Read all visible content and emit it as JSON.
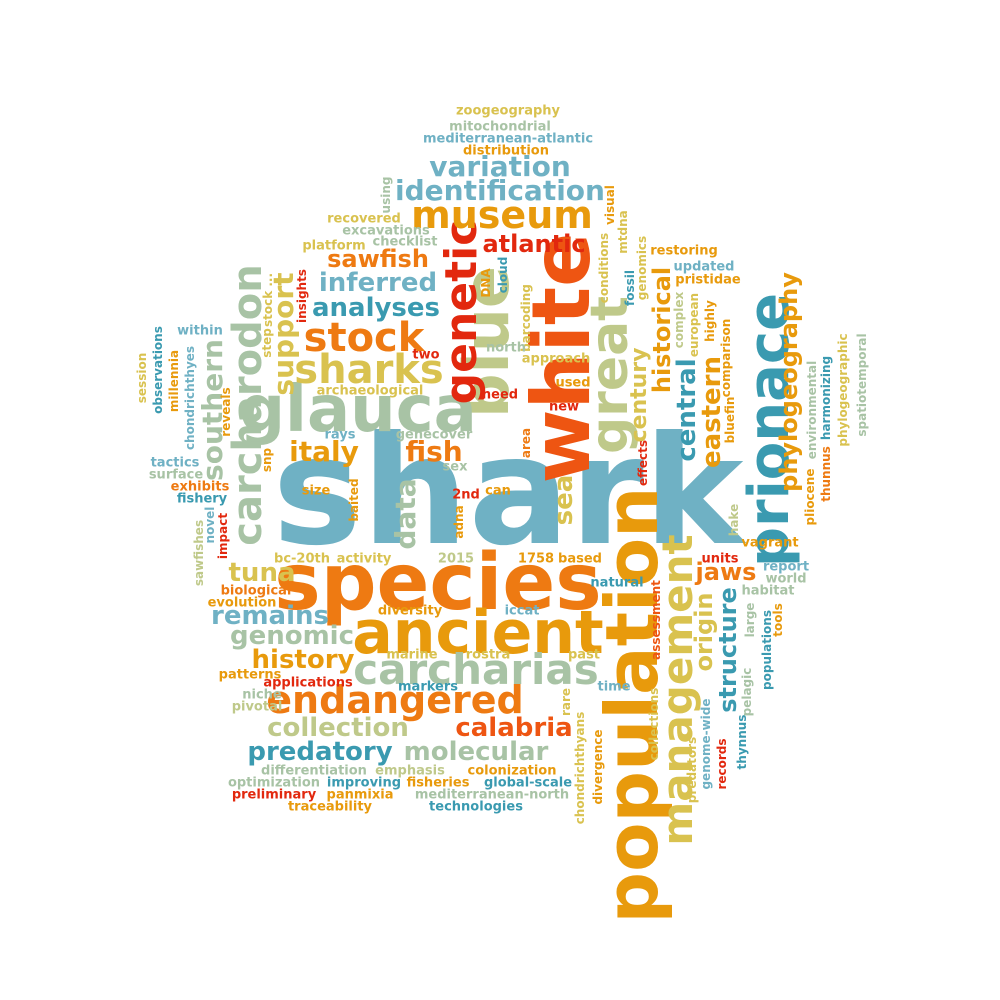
{
  "palette": {
    "teal": "#6FB1C4",
    "dark_teal": "#3A9AB0",
    "orange": "#EE7A12",
    "amber": "#E89A0C",
    "yellow": "#D9C24F",
    "sage": "#A8C3A5",
    "olive": "#BFC98A",
    "red": "#E2280E",
    "red_orange": "#EE5512"
  },
  "words": [
    {
      "text": "shark",
      "color": "#6FB1C4"
    },
    {
      "text": "species",
      "color": "#EE7A12"
    },
    {
      "text": "population",
      "color": "#E89A0C"
    },
    {
      "text": "white",
      "color": "#EE5512"
    },
    {
      "text": "ancient",
      "color": "#E89A0C"
    },
    {
      "text": "blue",
      "color": "#BFC98A"
    },
    {
      "text": "glauca",
      "color": "#A8C3A5"
    },
    {
      "text": "prionace",
      "color": "#3A9AB0"
    },
    {
      "text": "great",
      "color": "#BFC98A"
    },
    {
      "text": "management",
      "color": "#D9C24F"
    },
    {
      "text": "genetic",
      "color": "#E2280E"
    },
    {
      "text": "carcharias",
      "color": "#A8C3A5"
    },
    {
      "text": "endangered",
      "color": "#EE7A12"
    },
    {
      "text": "carcharodon",
      "color": "#A8C3A5"
    },
    {
      "text": "stock",
      "color": "#EE7A12"
    },
    {
      "text": "sharks",
      "color": "#D9C24F"
    },
    {
      "text": "museum",
      "color": "#E89A0C"
    },
    {
      "text": "identification",
      "color": "#6FB1C4"
    },
    {
      "text": "variation",
      "color": "#6FB1C4"
    },
    {
      "text": "atlantic",
      "color": "#E2280E"
    },
    {
      "text": "sawfish",
      "color": "#EE7A12"
    },
    {
      "text": "inferred",
      "color": "#6FB1C4"
    },
    {
      "text": "analyses",
      "color": "#3A9AB0"
    },
    {
      "text": "support",
      "color": "#D9C24F"
    },
    {
      "text": "southern",
      "color": "#A8C3A5"
    },
    {
      "text": "data",
      "color": "#A8C3A5"
    },
    {
      "text": "italy",
      "color": "#E89A0C"
    },
    {
      "text": "fish",
      "color": "#EE7A12"
    },
    {
      "text": "sea",
      "color": "#D9C24F"
    },
    {
      "text": "century",
      "color": "#D9C24F"
    },
    {
      "text": "historical",
      "color": "#E89A0C"
    },
    {
      "text": "central",
      "color": "#3A9AB0"
    },
    {
      "text": "eastern",
      "color": "#E89A0C"
    },
    {
      "text": "phylogeography",
      "color": "#E89A0C"
    },
    {
      "text": "tuna",
      "color": "#D9C24F"
    },
    {
      "text": "remains",
      "color": "#6FB1C4"
    },
    {
      "text": "genomic",
      "color": "#A8C3A5"
    },
    {
      "text": "history",
      "color": "#E89A0C"
    },
    {
      "text": "collection",
      "color": "#BFC98A"
    },
    {
      "text": "predatory",
      "color": "#3A9AB0"
    },
    {
      "text": "molecular",
      "color": "#A8C3A5"
    },
    {
      "text": "calabria",
      "color": "#EE5512"
    },
    {
      "text": "origin",
      "color": "#D9C24F"
    },
    {
      "text": "structure",
      "color": "#3A9AB0"
    },
    {
      "text": "jaws",
      "color": "#EE7A12"
    },
    {
      "text": "zoogeography",
      "color": "#D9C24F"
    },
    {
      "text": "mitochondrial",
      "color": "#A8C3A5"
    },
    {
      "text": "mediterranean-atlantic",
      "color": "#6FB1C4"
    },
    {
      "text": "distribution",
      "color": "#E89A0C"
    },
    {
      "text": "recovered",
      "color": "#D9C24F"
    },
    {
      "text": "excavations",
      "color": "#A8C3A5"
    },
    {
      "text": "platform",
      "color": "#D9C24F"
    },
    {
      "text": "checklist",
      "color": "#A8C3A5"
    },
    {
      "text": "using",
      "color": "#A8C3A5"
    },
    {
      "text": "visual",
      "color": "#E89A0C"
    },
    {
      "text": "mtdna",
      "color": "#D9C24F"
    },
    {
      "text": "genomics",
      "color": "#D9C24F"
    },
    {
      "text": "restoring",
      "color": "#E89A0C"
    },
    {
      "text": "updated",
      "color": "#6FB1C4"
    },
    {
      "text": "pristidae",
      "color": "#E89A0C"
    },
    {
      "text": "conditions",
      "color": "#D9C24F"
    },
    {
      "text": "fossil",
      "color": "#3A9AB0"
    },
    {
      "text": "cloud",
      "color": "#3A9AB0"
    },
    {
      "text": "DNA",
      "color": "#E89A0C"
    },
    {
      "text": "barcoding",
      "color": "#D9C24F"
    },
    {
      "text": "insights",
      "color": "#E2280E"
    },
    {
      "text": "stock ...",
      "color": "#D9C24F"
    },
    {
      "text": "step",
      "color": "#D9C24F"
    },
    {
      "text": "within",
      "color": "#6FB1C4"
    },
    {
      "text": "observations",
      "color": "#3A9AB0"
    },
    {
      "text": "chondrichthyes",
      "color": "#6FB1C4"
    },
    {
      "text": "session",
      "color": "#D9C24F"
    },
    {
      "text": "millennia",
      "color": "#E89A0C"
    },
    {
      "text": "reveals",
      "color": "#E89A0C"
    },
    {
      "text": "two",
      "color": "#E2280E"
    },
    {
      "text": "north",
      "color": "#A8C3A5"
    },
    {
      "text": "approach",
      "color": "#D9C24F"
    },
    {
      "text": "used",
      "color": "#E89A0C"
    },
    {
      "text": "new",
      "color": "#E2280E"
    },
    {
      "text": "need",
      "color": "#E2280E"
    },
    {
      "text": "archaeological",
      "color": "#D9C24F"
    },
    {
      "text": "rays",
      "color": "#6FB1C4"
    },
    {
      "text": "genecover",
      "color": "#A8C3A5"
    },
    {
      "text": "sex",
      "color": "#A8C3A5"
    },
    {
      "text": "area",
      "color": "#EE7A12"
    },
    {
      "text": "effects",
      "color": "#E2280E"
    },
    {
      "text": "tactics",
      "color": "#6FB1C4"
    },
    {
      "text": "surface",
      "color": "#A8C3A5"
    },
    {
      "text": "exhibits",
      "color": "#EE7A12"
    },
    {
      "text": "fishery",
      "color": "#3A9AB0"
    },
    {
      "text": "size",
      "color": "#E89A0C"
    },
    {
      "text": "baited",
      "color": "#E89A0C"
    },
    {
      "text": "snp",
      "color": "#E89A0C"
    },
    {
      "text": "2nd",
      "color": "#E2280E"
    },
    {
      "text": "can",
      "color": "#E89A0C"
    },
    {
      "text": "adna",
      "color": "#E89A0C"
    },
    {
      "text": "novel",
      "color": "#6FB1C4"
    },
    {
      "text": "impact",
      "color": "#E2280E"
    },
    {
      "text": "sawfishes",
      "color": "#BFC98A"
    },
    {
      "text": "bc-20th",
      "color": "#D9C24F"
    },
    {
      "text": "activity",
      "color": "#D9C24F"
    },
    {
      "text": "2015",
      "color": "#BFC98A"
    },
    {
      "text": "1758",
      "color": "#E89A0C"
    },
    {
      "text": "based",
      "color": "#E89A0C"
    },
    {
      "text": "units",
      "color": "#E2280E"
    },
    {
      "text": "vagrant",
      "color": "#E89A0C"
    },
    {
      "text": "report",
      "color": "#6FB1C4"
    },
    {
      "text": "world",
      "color": "#A8C3A5"
    },
    {
      "text": "habitat",
      "color": "#A8C3A5"
    },
    {
      "text": "natural",
      "color": "#3A9AB0"
    },
    {
      "text": "biological",
      "color": "#EE7A12"
    },
    {
      "text": "evolution",
      "color": "#E89A0C"
    },
    {
      "text": "diversity",
      "color": "#E89A0C"
    },
    {
      "text": "iccat",
      "color": "#6FB1C4"
    },
    {
      "text": "marine",
      "color": "#D9C24F"
    },
    {
      "text": "rostra",
      "color": "#D9C24F"
    },
    {
      "text": "past",
      "color": "#D9C24F"
    },
    {
      "text": "patterns",
      "color": "#E89A0C"
    },
    {
      "text": "applications",
      "color": "#E2280E"
    },
    {
      "text": "markers",
      "color": "#3A9AB0"
    },
    {
      "text": "time",
      "color": "#6FB1C4"
    },
    {
      "text": "niche",
      "color": "#A8C3A5"
    },
    {
      "text": "pivotal",
      "color": "#BFC98A"
    },
    {
      "text": "differentiation",
      "color": "#A8C3A5"
    },
    {
      "text": "emphasis",
      "color": "#BFC98A"
    },
    {
      "text": "colonization",
      "color": "#E89A0C"
    },
    {
      "text": "optimization",
      "color": "#A8C3A5"
    },
    {
      "text": "improving",
      "color": "#3A9AB0"
    },
    {
      "text": "fisheries",
      "color": "#E89A0C"
    },
    {
      "text": "global-scale",
      "color": "#3A9AB0"
    },
    {
      "text": "preliminary",
      "color": "#E2280E"
    },
    {
      "text": "panmixia",
      "color": "#E89A0C"
    },
    {
      "text": "mediterranean-north",
      "color": "#A8C3A5"
    },
    {
      "text": "traceability",
      "color": "#E89A0C"
    },
    {
      "text": "technologies",
      "color": "#3A9AB0"
    },
    {
      "text": "rare",
      "color": "#D9C24F"
    },
    {
      "text": "chondrichthyans",
      "color": "#D9C24F"
    },
    {
      "text": "divergence",
      "color": "#E89A0C"
    },
    {
      "text": "collections",
      "color": "#D9C24F"
    },
    {
      "text": "assessment",
      "color": "#EE5512"
    },
    {
      "text": "predators",
      "color": "#D9C24F"
    },
    {
      "text": "genome-wide",
      "color": "#6FB1C4"
    },
    {
      "text": "records",
      "color": "#E2280E"
    },
    {
      "text": "thynnus",
      "color": "#3A9AB0"
    },
    {
      "text": "pelagic",
      "color": "#A8C3A5"
    },
    {
      "text": "large",
      "color": "#A8C3A5"
    },
    {
      "text": "populations",
      "color": "#3A9AB0"
    },
    {
      "text": "tools",
      "color": "#E89A0C"
    },
    {
      "text": "hake",
      "color": "#BFC98A"
    },
    {
      "text": "bluefin",
      "color": "#E89A0C"
    },
    {
      "text": "comparison",
      "color": "#E89A0C"
    },
    {
      "text": "highly",
      "color": "#E89A0C"
    },
    {
      "text": "european",
      "color": "#D9C24F"
    },
    {
      "text": "complex",
      "color": "#BFC98A"
    },
    {
      "text": "environmental",
      "color": "#A8C3A5"
    },
    {
      "text": "pliocene",
      "color": "#E89A0C"
    },
    {
      "text": "harmonizing",
      "color": "#3A9AB0"
    },
    {
      "text": "thunnus",
      "color": "#EE7A12"
    },
    {
      "text": "phylogeographic",
      "color": "#D9C24F"
    },
    {
      "text": "spatiotemporal",
      "color": "#A8C3A5"
    }
  ]
}
